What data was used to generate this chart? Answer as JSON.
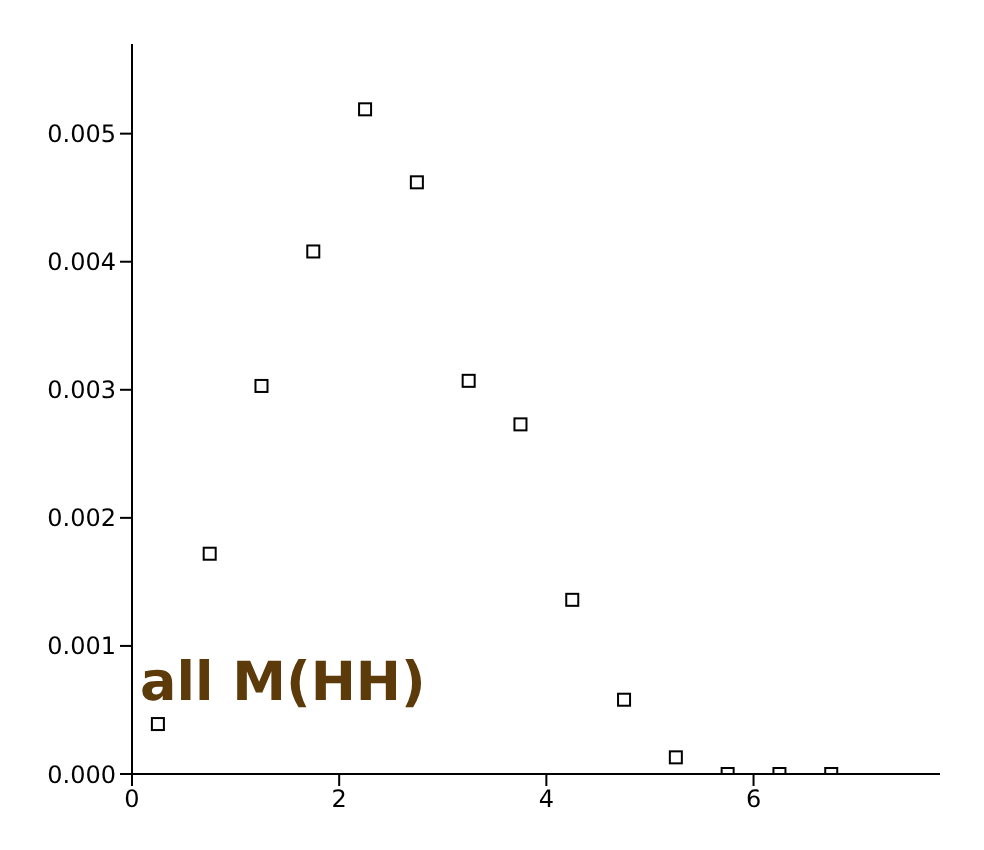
{
  "chart_data": {
    "type": "scatter",
    "x": [
      0.25,
      0.75,
      1.25,
      1.75,
      2.25,
      2.75,
      3.25,
      3.75,
      4.25,
      4.75,
      5.25,
      5.75,
      6.25,
      6.75
    ],
    "series": [
      {
        "color": "#000000",
        "values": [
          0.00039,
          0.00172,
          0.00303,
          0.00408,
          0.00519,
          0.00462,
          0.00307,
          0.00273,
          0.00136,
          0.00058,
          0.00013,
          0,
          0,
          0
        ]
      }
    ],
    "xlim": [
      0,
      7.8
    ],
    "xticks": [
      0,
      2,
      4,
      6
    ],
    "ylim": [
      0,
      0.0057
    ],
    "yticks": [
      {
        "value": 0,
        "label": "0.000"
      },
      {
        "value": 0.001,
        "label": "0.001"
      },
      {
        "value": 0.002,
        "label": "0.002"
      },
      {
        "value": 0.003,
        "label": "0.003"
      },
      {
        "value": 0.004,
        "label": "0.004"
      },
      {
        "value": 0.005,
        "label": "0.005"
      }
    ],
    "marker": "square",
    "grid": false,
    "legend": false,
    "annotations": [
      "all M(HH)"
    ]
  }
}
